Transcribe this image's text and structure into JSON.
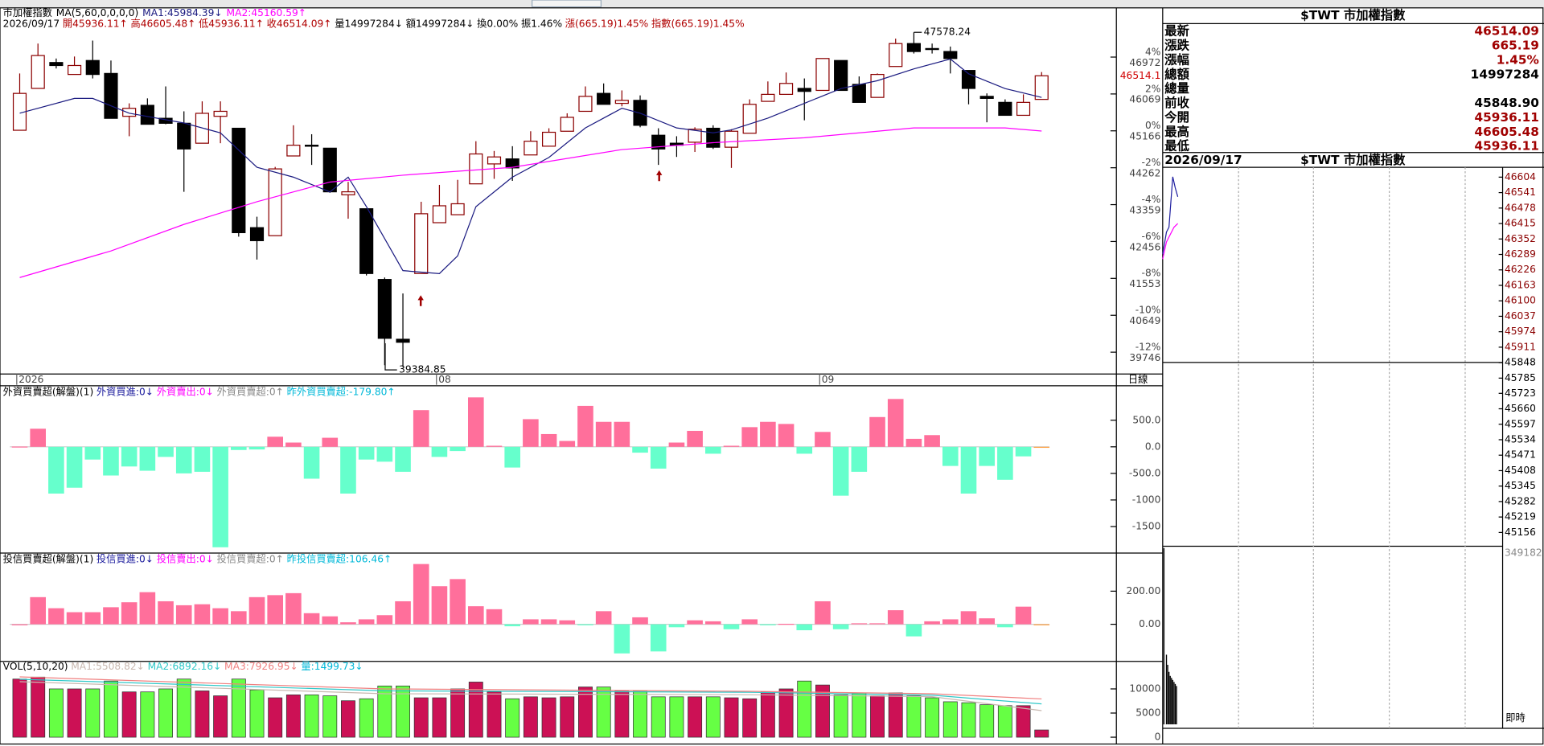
{
  "main": {
    "name": "市加權指數",
    "ma_label": "MA(5,60,0,0,0,0)",
    "ma1_text": "MA1:45984.39↓",
    "ma2_text": "MA2:45160.59↑",
    "info": [
      {
        "text": "2026/09/17",
        "color": "#000000"
      },
      {
        "text": "開45936.11↑",
        "color": "#b00000"
      },
      {
        "text": "高46605.48↑",
        "color": "#b00000"
      },
      {
        "text": "低45936.11↑",
        "color": "#b00000"
      },
      {
        "text": "收46514.09↑",
        "color": "#b00000"
      },
      {
        "text": "量14997284↓",
        "color": "#000000"
      },
      {
        "text": "額14997284↓",
        "color": "#000000"
      },
      {
        "text": "換0.00%",
        "color": "#000000"
      },
      {
        "text": "振1.46%",
        "color": "#000000"
      },
      {
        "text": "漲(665.19)1.45%",
        "color": "#b00000"
      },
      {
        "text": "指數(665.19)1.45%",
        "color": "#b00000"
      }
    ],
    "candles": {
      "open": [
        45180,
        46205,
        46839,
        46547,
        46888,
        46571,
        45522,
        45790,
        45473,
        45351,
        44863,
        45522,
        45229,
        42795,
        42599,
        44551,
        44814,
        44741,
        43600,
        43258,
        41526,
        40062,
        41672,
        42917,
        43112,
        43868,
        44356,
        44478,
        44576,
        44790,
        45156,
        45644,
        46083,
        45839,
        45912,
        45058,
        44863,
        44887,
        45229,
        44765,
        45107,
        45888,
        46059,
        46205,
        46156,
        46888,
        46303,
        45985,
        46742,
        47303,
        47181,
        47108,
        46644,
        46010,
        45863,
        45546,
        45936.11
      ],
      "high": [
        46571,
        47303,
        46937,
        46986,
        47376,
        46888,
        45839,
        45961,
        46254,
        45644,
        45888,
        45888,
        45229,
        43063,
        44283,
        45302,
        45083,
        44741,
        43917,
        43258,
        41575,
        41184,
        43429,
        43843,
        43966,
        44912,
        44673,
        44790,
        45156,
        45229,
        45595,
        46254,
        46327,
        46156,
        46034,
        45229,
        45034,
        45253,
        45302,
        45205,
        45937,
        46376,
        46595,
        46449,
        46937,
        46888,
        46498,
        46571,
        47425,
        47578.24,
        47303,
        47230,
        46644,
        46083,
        45937,
        46059,
        46605.48
      ],
      "low": [
        45180,
        46205,
        46693,
        46547,
        46449,
        45473,
        45034,
        45327,
        45327,
        43673,
        44863,
        44863,
        42575,
        42014,
        42599,
        44551,
        44332,
        43649,
        43014,
        41624,
        39428,
        39384.85,
        41672,
        42917,
        43112,
        43868,
        43990,
        43941,
        44576,
        44790,
        45156,
        45644,
        45815,
        45766,
        45253,
        44332,
        44527,
        44649,
        44722,
        44259,
        45107,
        45888,
        46059,
        45424,
        46156,
        46156,
        45863,
        45985,
        46742,
        47059,
        47059,
        46571,
        45815,
        45375,
        45546,
        45546,
        45936.11
      ],
      "close": [
        46083,
        47010,
        46766,
        46766,
        46547,
        45473,
        45717,
        45327,
        45351,
        44722,
        45595,
        45644,
        42673,
        42477,
        44234,
        44814,
        44790,
        43673,
        43673,
        41672,
        40086,
        39989,
        43136,
        43331,
        43380,
        44600,
        44527,
        44259,
        44912,
        45131,
        45497,
        46010,
        45815,
        45912,
        45302,
        44722,
        44814,
        45205,
        44765,
        45156,
        45815,
        46059,
        46327,
        46132,
        46937,
        46156,
        45863,
        46547,
        47303,
        47108,
        47157,
        46937,
        46205,
        45961,
        45546,
        45863,
        46514.09
      ]
    },
    "up_color": "#8b0000",
    "down_color": "#000000",
    "ma_lines": [
      {
        "name": "MA1",
        "color": "#1a1a80",
        "x": [
          0,
          3,
          4,
          6,
          9,
          11,
          13,
          15,
          17,
          18,
          19,
          21,
          23,
          24,
          25,
          27,
          29,
          31,
          33,
          34,
          36,
          38,
          39,
          41,
          43,
          45,
          47,
          49,
          51,
          52,
          54,
          56
        ],
        "values": [
          45598,
          45960,
          45960,
          45598,
          45358,
          45117,
          44273,
          44032,
          43670,
          44032,
          43309,
          41743,
          41670,
          42104,
          43309,
          44032,
          44514,
          45237,
          45719,
          45598,
          45237,
          45117,
          45189,
          45478,
          45840,
          46201,
          46394,
          46683,
          46924,
          46563,
          46201,
          45984.39
        ]
      },
      {
        "name": "MA2",
        "color": "#ff00ff",
        "x": [
          0,
          5,
          9,
          13,
          17,
          21,
          27,
          33,
          38,
          43,
          49,
          54,
          56
        ],
        "values": [
          41574,
          42225,
          42875,
          43430,
          43912,
          44080,
          44273,
          44707,
          44876,
          44996,
          45237,
          45237,
          45160.59
        ]
      }
    ],
    "ylim": [
      39212,
      48177
    ],
    "yticks": [
      46972,
      46069,
      45166,
      44262,
      43359,
      42456,
      41553,
      40649,
      39746
    ],
    "pct_labels": [
      "4%",
      "2%",
      "0%",
      "-2%",
      "-4%",
      "-6%",
      "-8%",
      "-10%",
      "-12%"
    ],
    "last_price_label": "46514.1",
    "high_label": "47578.24",
    "low_label": "39384.85",
    "date_marks": [
      {
        "label": "2026",
        "index": 0
      },
      {
        "label": "08",
        "index": 23
      },
      {
        "label": "09",
        "index": 44
      }
    ],
    "period_label": "日線"
  },
  "foreign": {
    "title": "外資買賣超(解盤)(1)",
    "legend": [
      {
        "text": "外資買進:0↓",
        "color": "#1a1a9c"
      },
      {
        "text": "外資賣出:0↓",
        "color": "#ff00ff"
      },
      {
        "text": "外資買賣超:0↑",
        "color": "#888888"
      },
      {
        "text": "昨外資買賣超:-179.80↑",
        "color": "#00b8d8"
      }
    ],
    "values": [
      5,
      340,
      -880,
      -770,
      -240,
      -540,
      -370,
      -450,
      -190,
      -500,
      -470,
      -1890,
      -60,
      -50,
      190,
      80,
      -600,
      170,
      -880,
      -240,
      -280,
      -470,
      690,
      -190,
      -80,
      930,
      20,
      -390,
      520,
      240,
      110,
      770,
      470,
      470,
      -110,
      -410,
      80,
      300,
      -130,
      20,
      370,
      470,
      430,
      -130,
      280,
      -920,
      -470,
      560,
      900,
      150,
      220,
      -360,
      -880,
      -360,
      -620,
      -179.8,
      0
    ],
    "ylim": [
      -2000,
      1148
    ],
    "yticks": [
      {
        "value": 500,
        "label": "500.0"
      },
      {
        "value": 0,
        "label": "0.0"
      },
      {
        "value": -500,
        "label": "-500.0"
      },
      -1000,
      -1500
    ],
    "pos_color": "#ff6f9b",
    "neg_color": "#66ffcc"
  },
  "trust": {
    "title": "投信買賣超(解盤)(1)",
    "legend": [
      {
        "text": "投信買進:0↓",
        "color": "#1a1a9c"
      },
      {
        "text": "投信賣出:0↓",
        "color": "#ff00ff"
      },
      {
        "text": "投信買賣超:0↑",
        "color": "#888888"
      },
      {
        "text": "昨投信買賣超:106.46↑",
        "color": "#00b8d8"
      }
    ],
    "values": [
      0,
      164,
      97,
      73,
      73,
      103,
      133,
      194,
      139,
      115,
      121,
      97,
      79,
      164,
      176,
      188,
      67,
      48,
      12,
      30,
      55,
      139,
      364,
      230,
      273,
      109,
      91,
      -12,
      30,
      30,
      24,
      -6,
      79,
      -176,
      42,
      -164,
      -18,
      24,
      18,
      -30,
      30,
      -6,
      3,
      -36,
      139,
      -30,
      6,
      6,
      85,
      -73,
      18,
      30,
      79,
      36,
      -18,
      106.46,
      0
    ],
    "ylim": [
      -224,
      430
    ],
    "yticks": [
      {
        "value": 200,
        "label": "200.00"
      },
      {
        "value": 0,
        "label": "0.00"
      }
    ],
    "pos_color": "#ff6f9b",
    "neg_color": "#66ffcc"
  },
  "volume": {
    "title": "VOL(5,10,20)",
    "legend": [
      {
        "text": "MA1:5508.82↓",
        "color": "#c8b8b0"
      },
      {
        "text": "MA2:6892.16↓",
        "color": "#30c8c8"
      },
      {
        "text": "MA3:7926.95↓",
        "color": "#f08080"
      },
      {
        "text": "量:1499.73↓",
        "color": "#00b8d8"
      }
    ],
    "values": [
      12040,
      12450,
      10000,
      10000,
      10000,
      11630,
      9380,
      9380,
      10000,
      12040,
      9590,
      8570,
      12040,
      9790,
      8160,
      8770,
      8770,
      8570,
      7550,
      7960,
      10610,
      10610,
      8160,
      8160,
      10000,
      11420,
      9380,
      7960,
      8360,
      8160,
      8360,
      10400,
      10400,
      9590,
      9590,
      8360,
      8360,
      8360,
      8360,
      8160,
      7960,
      9380,
      10000,
      11630,
      10810,
      8770,
      9180,
      8570,
      9180,
      8570,
      8160,
      7340,
      7140,
      6730,
      6530,
      6530,
      1499.73
    ],
    "ylim": [
      -600,
      15500
    ],
    "yticks": [
      10000,
      5000,
      0
    ],
    "up_color": "#cc1155",
    "down_color": "#66ff44",
    "ma_lines": [
      {
        "name": "MA1",
        "color": "#c8b8b0",
        "x": [
          0,
          20,
          40,
          50,
          56
        ],
        "values": [
          11500,
          9000,
          8800,
          8400,
          5508.82
        ]
      },
      {
        "name": "MA2",
        "color": "#30c8c8",
        "x": [
          0,
          20,
          40,
          50,
          56
        ],
        "values": [
          12000,
          9600,
          9300,
          8700,
          6892.16
        ]
      },
      {
        "name": "MA3",
        "color": "#f08080",
        "x": [
          0,
          20,
          40,
          50,
          56
        ],
        "values": [
          12500,
          10000,
          9500,
          9000,
          7926.95
        ]
      }
    ]
  },
  "quote": {
    "title": "$TWT 市加權指數",
    "rows": [
      {
        "label": "最新",
        "value": "46514.09"
      },
      {
        "label": "漲跌",
        "value": "665.19"
      },
      {
        "label": "漲幅",
        "value": "1.45%"
      },
      {
        "label": "總額",
        "value": "14997284"
      },
      {
        "label": "總量"
      },
      {
        "label": "前收",
        "value": "45848.90"
      },
      {
        "label": "今開",
        "value": "45936.11"
      },
      {
        "label": "最高",
        "value": "46605.48"
      },
      {
        "label": "最低",
        "value": "45936.11"
      }
    ]
  },
  "intraday": {
    "date": "2026/09/17",
    "title": "$TWT 市加權指數",
    "xlim": [
      0,
      270
    ],
    "ylim": [
      45100,
      46624
    ],
    "prev_close": 45848.9,
    "yticks": [
      46604,
      46541,
      46478,
      46415,
      46352,
      46289,
      46226,
      46163,
      46100,
      46037,
      45974,
      45911,
      45848,
      45785,
      45723,
      45660,
      45597,
      45534,
      45471,
      45408,
      45345,
      45282,
      45219,
      45156
    ],
    "price": {
      "color": "#2020a0",
      "x": [
        0,
        3,
        5,
        8,
        10,
        12
      ],
      "values": [
        46290,
        46380,
        46400,
        46605.48,
        46560,
        46524
      ]
    },
    "ma": {
      "color": "#ff00ff",
      "x": [
        0,
        3,
        6,
        9,
        12
      ],
      "values": [
        46270,
        46340,
        46370,
        46400,
        46415
      ]
    },
    "volume": {
      "x": [
        1,
        3,
        4,
        5,
        6,
        7,
        8,
        9,
        10,
        11
      ],
      "values": [
        349182,
        138000,
        118000,
        104000,
        96000,
        92000,
        88000,
        84000,
        80000,
        76000
      ],
      "ylim": [
        0,
        352900
      ],
      "yticks": [
        349182
      ]
    },
    "rt_label": "即時"
  }
}
